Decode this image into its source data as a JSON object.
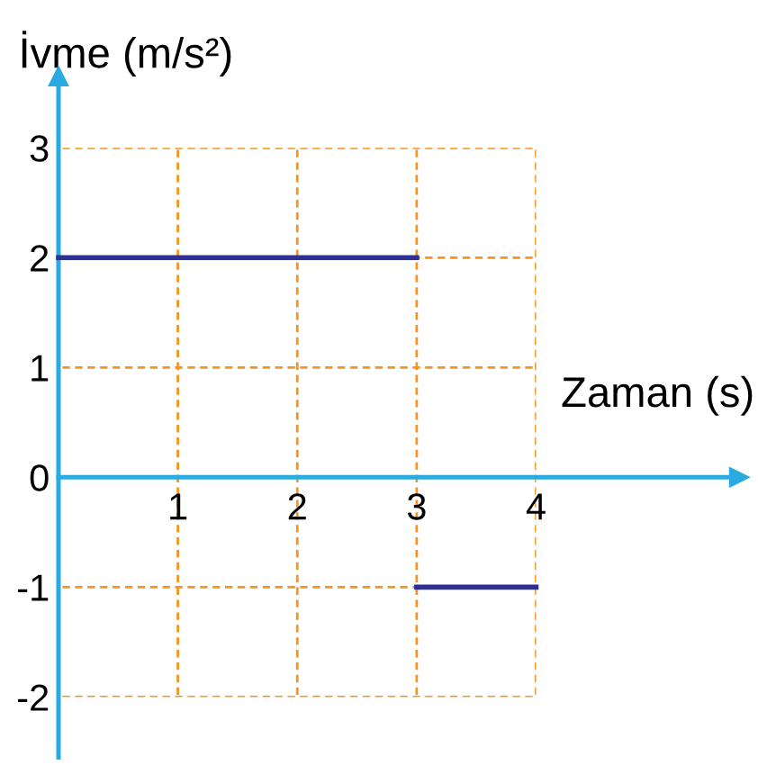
{
  "chart_data": {
    "type": "line",
    "xlabel": "Zaman (s)",
    "ylabel": "İvme (m/s²)",
    "series": [
      {
        "color": "#2e3192",
        "x": [
          0,
          3
        ],
        "values": [
          2,
          2
        ]
      },
      {
        "color": "#2e3192",
        "x": [
          3,
          4
        ],
        "values": [
          -1,
          -1
        ]
      }
    ],
    "xlim": [
      -0.49,
      5.7
    ],
    "ylim": [
      -2.55,
      3.65
    ],
    "xticks": [
      1,
      2,
      3,
      4
    ],
    "yticks": [
      -2,
      -1,
      0,
      1,
      2,
      3
    ],
    "grid": true,
    "line_style": "solid",
    "marker": "none"
  }
}
